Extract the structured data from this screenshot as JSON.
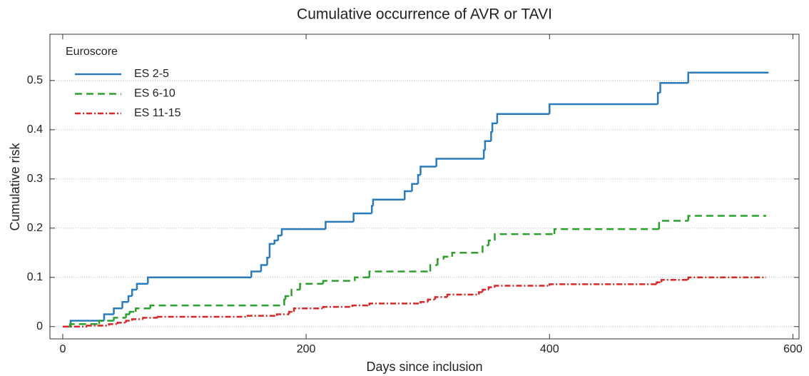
{
  "chart_data": {
    "type": "step",
    "title": "Cumulative occurrence of AVR or TAVI",
    "x_label": "Days since inclusion",
    "y_label": "Cumulative risk",
    "legend_title": "Euroscore",
    "legend": "upper left",
    "grid": true,
    "xlim": [
      -10.5,
      605
    ],
    "ylim": [
      -0.025,
      0.594
    ],
    "xticks": [
      0,
      200,
      400,
      600
    ],
    "yticks": [
      0,
      0.1,
      0.2,
      0.3,
      0.4,
      0.5
    ],
    "series": [
      {
        "name": "ES 2-5",
        "color": "#2b7bba",
        "dash": "solid",
        "x": [
          0,
          6.5,
          34,
          42,
          49,
          54,
          57,
          61,
          70,
          155,
          163,
          168,
          170,
          174,
          177,
          180,
          216,
          239,
          254,
          255,
          281,
          287,
          292,
          294,
          307,
          346,
          347,
          352,
          353,
          357,
          400,
          489,
          491,
          514,
          580
        ],
        "values": [
          0,
          0.012,
          0.025,
          0.037,
          0.05,
          0.062,
          0.075,
          0.087,
          0.1,
          0.112,
          0.125,
          0.14,
          0.168,
          0.175,
          0.185,
          0.198,
          0.213,
          0.23,
          0.245,
          0.258,
          0.275,
          0.29,
          0.308,
          0.325,
          0.341,
          0.358,
          0.377,
          0.395,
          0.413,
          0.432,
          0.452,
          0.475,
          0.495,
          0.516,
          0.516
        ]
      },
      {
        "name": "ES 6-10",
        "color": "#2ca02c",
        "dash": "dashed",
        "x": [
          0,
          6,
          30,
          42,
          52,
          55,
          60,
          72,
          182,
          183,
          188,
          195,
          214,
          240,
          252,
          302,
          308,
          313,
          320,
          345,
          350,
          355,
          404,
          490,
          514,
          578
        ],
        "values": [
          0,
          0.005,
          0.012,
          0.018,
          0.025,
          0.03,
          0.037,
          0.043,
          0.055,
          0.062,
          0.075,
          0.087,
          0.093,
          0.1,
          0.112,
          0.125,
          0.137,
          0.142,
          0.15,
          0.165,
          0.175,
          0.188,
          0.198,
          0.215,
          0.225,
          0.225
        ]
      },
      {
        "name": "ES 11-15",
        "color": "#d62728",
        "dash": "dashdot",
        "x": [
          0,
          20,
          38,
          45,
          52,
          57,
          66,
          78,
          152,
          176,
          186,
          190,
          214,
          238,
          252,
          294,
          300,
          306,
          316,
          342,
          345,
          350,
          355,
          400,
          488,
          492,
          514,
          578
        ],
        "values": [
          0,
          0.002,
          0.005,
          0.008,
          0.012,
          0.015,
          0.018,
          0.02,
          0.022,
          0.025,
          0.03,
          0.037,
          0.04,
          0.043,
          0.047,
          0.05,
          0.055,
          0.06,
          0.065,
          0.07,
          0.075,
          0.08,
          0.083,
          0.086,
          0.09,
          0.095,
          0.1,
          0.1
        ]
      }
    ]
  }
}
